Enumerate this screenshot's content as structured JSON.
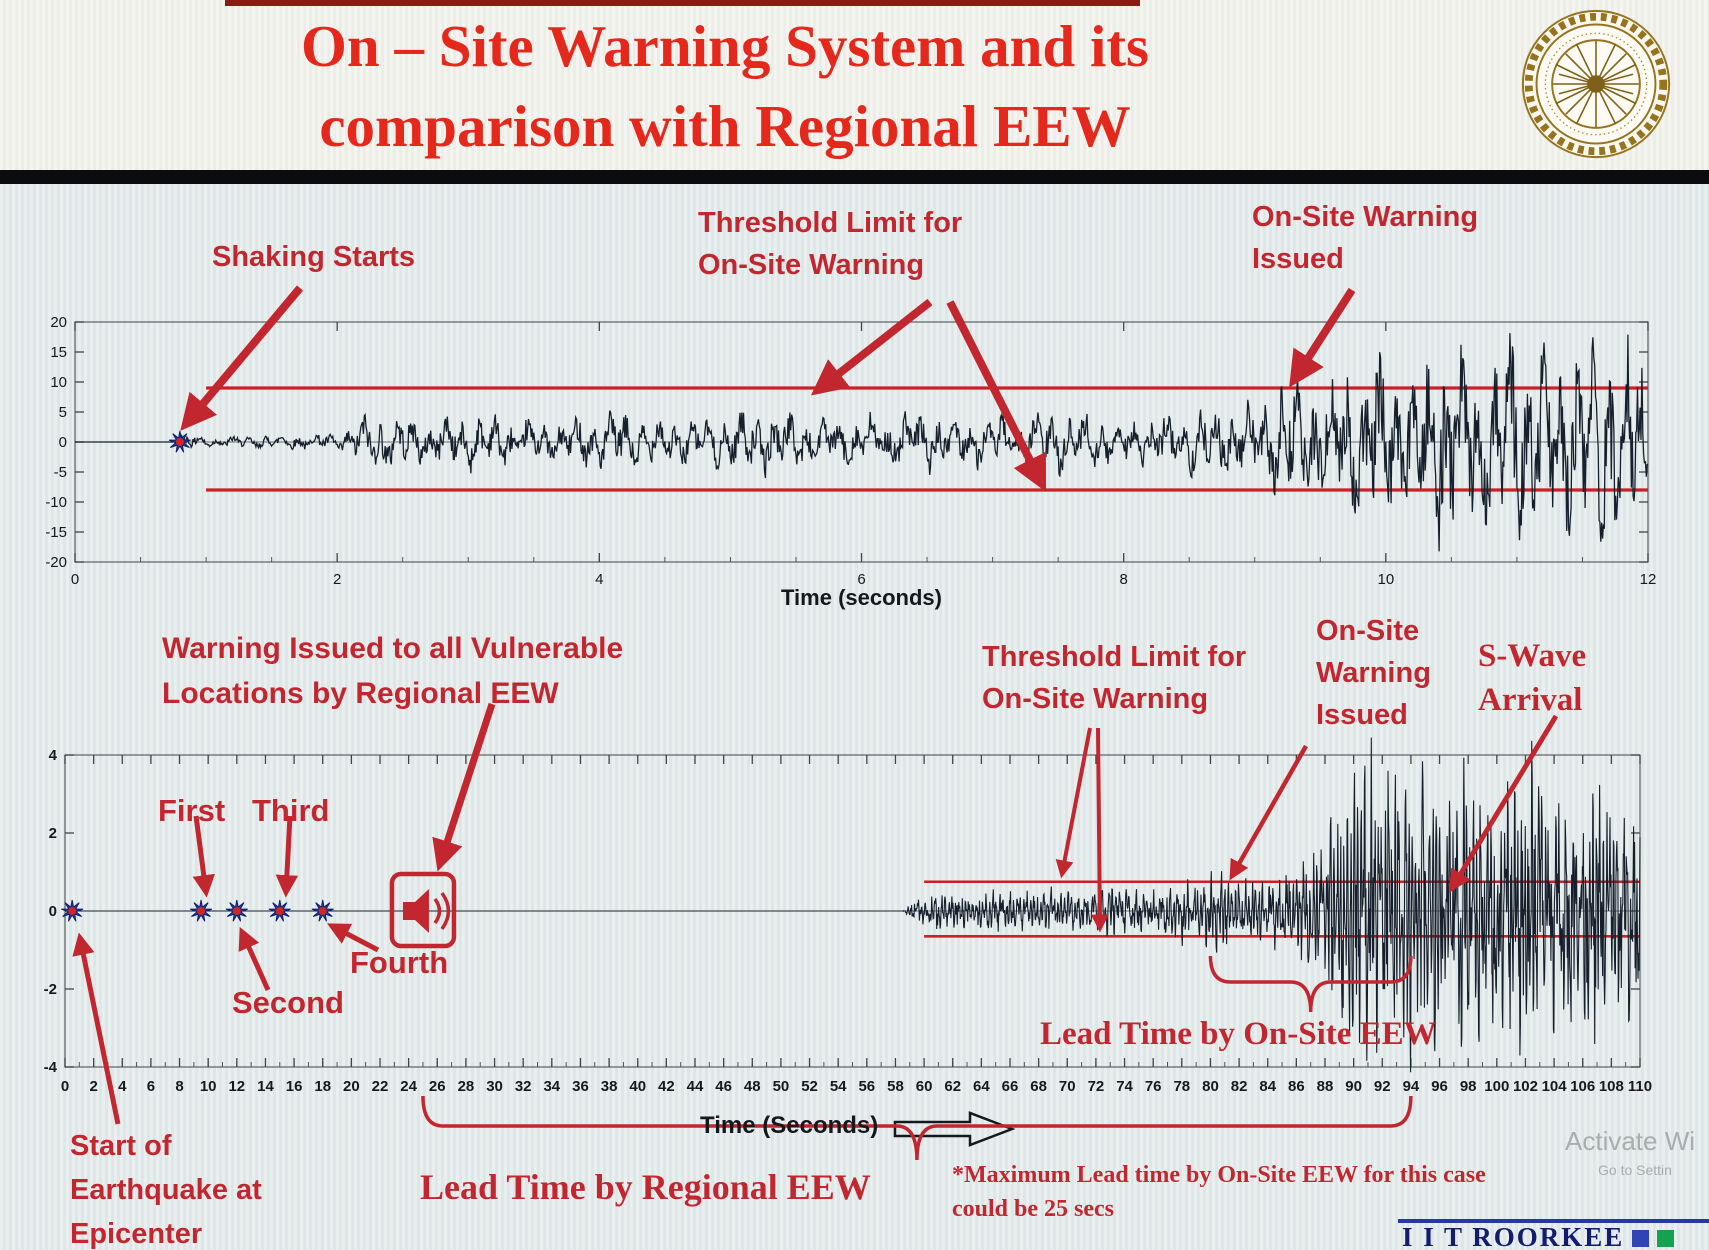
{
  "slide": {
    "title_line1": "On – Site Warning System and its",
    "title_line2": "comparison with Regional EEW",
    "footer_brand": "I I T ROORKEE",
    "watermark_line1": "Activate Wi",
    "watermark_line2": "Go to Settin"
  },
  "icons": {
    "logo": "iit-roorkee-seal",
    "alarm": "warning-speaker-icon",
    "marker": "p-wave-detection-star",
    "axis_arrow": "right-arrow-icon"
  },
  "colors": {
    "title_red": "#e5281c",
    "annotation_red": "#c22730",
    "threshold_red": "#cc1f26",
    "waveform": "#16202c",
    "star_blue": "#1d3aa6",
    "brand_blue": "#2f45b5",
    "brand_green": "#13a24f"
  },
  "annotations": {
    "shaking_starts": "Shaking Starts",
    "threshold_top_l1": "Threshold Limit for",
    "threshold_top_l2": "On-Site Warning",
    "onsite_top_l1": "On-Site Warning",
    "onsite_top_l2": "Issued",
    "regional_warning_l1": "Warning Issued to all Vulnerable",
    "regional_warning_l2": "Locations by Regional EEW",
    "first": "First",
    "second": "Second",
    "third": "Third",
    "fourth": "Fourth",
    "threshold_bottom_l1": "Threshold Limit for",
    "threshold_bottom_l2": "On-Site Warning",
    "onsite_bottom_l1": "On-Site",
    "onsite_bottom_l2": "Warning",
    "onsite_bottom_l3": "Issued",
    "s_wave_l1": "S-Wave",
    "s_wave_l2": "Arrival",
    "start_eq_l1": "Start of",
    "start_eq_l2": "Earthquake at",
    "start_eq_l3": "Epicenter",
    "lead_onsite": "Lead Time by On-Site EEW",
    "lead_regional": "Lead Time by Regional EEW",
    "note_l1": "*Maximum Lead time by On-Site EEW for this case",
    "note_l2": "could be 25 secs"
  },
  "chart_data": [
    {
      "type": "line",
      "name": "on-site-station-seismogram",
      "xlabel": "Time (seconds)",
      "xlim": [
        0,
        12
      ],
      "xticks": [
        0,
        2,
        4,
        6,
        8,
        10,
        12
      ],
      "ylim": [
        -20,
        20
      ],
      "yticks": [
        20,
        15,
        10,
        5,
        0,
        -5,
        -10,
        -15,
        -20
      ],
      "threshold_upper": 9,
      "threshold_lower": -8,
      "threshold_start_x": 1.0,
      "shaking_start_time": 0.8,
      "onsite_warning_time": 9.3,
      "freqs": [
        8,
        3.1
      ],
      "envelope": [
        [
          0,
          0
        ],
        [
          0.76,
          0
        ],
        [
          0.8,
          1.4
        ],
        [
          1.05,
          0.7
        ],
        [
          1.5,
          1.0
        ],
        [
          2.0,
          1.3
        ],
        [
          2.3,
          4.6
        ],
        [
          2.65,
          3.2
        ],
        [
          3.1,
          4.0
        ],
        [
          3.6,
          2.8
        ],
        [
          4.1,
          4.2
        ],
        [
          4.7,
          3.1
        ],
        [
          5.2,
          4.4
        ],
        [
          5.8,
          3.2
        ],
        [
          6.3,
          4.6
        ],
        [
          6.9,
          3.4
        ],
        [
          7.4,
          4.4
        ],
        [
          8.0,
          3.6
        ],
        [
          8.5,
          4.4
        ],
        [
          9.0,
          5.5
        ],
        [
          9.25,
          9.5
        ],
        [
          9.55,
          7.5
        ],
        [
          9.85,
          13
        ],
        [
          10.15,
          9.5
        ],
        [
          10.45,
          16
        ],
        [
          10.75,
          11.5
        ],
        [
          11.05,
          17.5
        ],
        [
          11.35,
          11
        ],
        [
          11.65,
          16.5
        ],
        [
          12,
          13.5
        ]
      ]
    },
    {
      "type": "line",
      "name": "regional-eew-seismogram",
      "xlabel": "Time (Seconds)",
      "xlim": [
        0,
        110
      ],
      "xtick_step": 2,
      "ylim": [
        -4,
        4
      ],
      "yticks": [
        4,
        2,
        0,
        -2,
        -4
      ],
      "threshold_upper": 0.75,
      "threshold_lower": -0.65,
      "threshold_start_x": 60,
      "epicenter_time": 0.5,
      "p_wave_detections": [
        {
          "label": "First",
          "time": 9.5
        },
        {
          "label": "Second",
          "time": 12
        },
        {
          "label": "Third",
          "time": 15
        },
        {
          "label": "Fourth",
          "time": 18
        }
      ],
      "regional_warning_time": 25,
      "onsite_warning_time": 80,
      "s_wave_arrival_time": 94,
      "lead_time_onsite_span": [
        80,
        94
      ],
      "lead_time_regional_span": [
        25,
        94
      ],
      "max_onsite_lead_time_secs": 25,
      "freqs": [
        4.2,
        1.7
      ],
      "envelope": [
        [
          0,
          0
        ],
        [
          58.5,
          0
        ],
        [
          59.5,
          0.3
        ],
        [
          61,
          0.42
        ],
        [
          63,
          0.34
        ],
        [
          65,
          0.46
        ],
        [
          67,
          0.38
        ],
        [
          69,
          0.5
        ],
        [
          71,
          0.4
        ],
        [
          73,
          0.52
        ],
        [
          75,
          0.42
        ],
        [
          77,
          0.55
        ],
        [
          79,
          0.72
        ],
        [
          80.5,
          0.85
        ],
        [
          82,
          0.62
        ],
        [
          84,
          0.78
        ],
        [
          86,
          1.05
        ],
        [
          87.5,
          1.6
        ],
        [
          89,
          2.5
        ],
        [
          90.5,
          3.2
        ],
        [
          92,
          3.6
        ],
        [
          93.5,
          3.0
        ],
        [
          95,
          3.6
        ],
        [
          96.5,
          2.8
        ],
        [
          98,
          3.4
        ],
        [
          100,
          2.7
        ],
        [
          102,
          3.3
        ],
        [
          104,
          2.5
        ],
        [
          106,
          3.0
        ],
        [
          108,
          2.3
        ],
        [
          110,
          2.6
        ]
      ]
    }
  ]
}
